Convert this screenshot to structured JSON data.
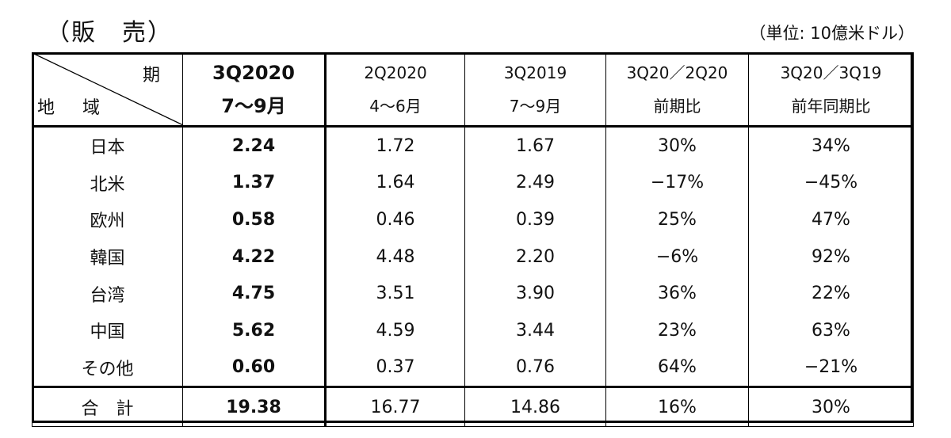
{
  "title": "（販　売）",
  "unit": "（単位: 10億米ドル）",
  "header": {
    "corner_period": "期",
    "corner_region": "地 域",
    "columns": [
      {
        "line1": "3Q2020",
        "line2": "7〜9月"
      },
      {
        "line1": "2Q2020",
        "line2": "4〜6月"
      },
      {
        "line1": "3Q2019",
        "line2": "7〜9月"
      },
      {
        "line1": "3Q20／2Q20",
        "line2": "前期比"
      },
      {
        "line1": "3Q20／3Q19",
        "line2": "前年同期比"
      }
    ]
  },
  "rows": [
    {
      "region": "日本",
      "v1": "2.24",
      "v2": "1.72",
      "v3": "1.67",
      "v4": "30%",
      "v5": "34%"
    },
    {
      "region": "北米",
      "v1": "1.37",
      "v2": "1.64",
      "v3": "2.49",
      "v4": "−17%",
      "v5": "−45%"
    },
    {
      "region": "欧州",
      "v1": "0.58",
      "v2": "0.46",
      "v3": "0.39",
      "v4": "25%",
      "v5": "47%"
    },
    {
      "region": "韓国",
      "v1": "4.22",
      "v2": "4.48",
      "v3": "2.20",
      "v4": "−6%",
      "v5": "92%"
    },
    {
      "region": "台湾",
      "v1": "4.75",
      "v2": "3.51",
      "v3": "3.90",
      "v4": "36%",
      "v5": "22%"
    },
    {
      "region": "中国",
      "v1": "5.62",
      "v2": "4.59",
      "v3": "3.44",
      "v4": "23%",
      "v5": "63%"
    },
    {
      "region": "その他",
      "v1": "0.60",
      "v2": "0.37",
      "v3": "0.76",
      "v4": "64%",
      "v5": "−21%"
    }
  ],
  "total": {
    "region": "合計",
    "v1": "19.38",
    "v2": "16.77",
    "v3": "14.86",
    "v4": "16%",
    "v5": "30%"
  }
}
